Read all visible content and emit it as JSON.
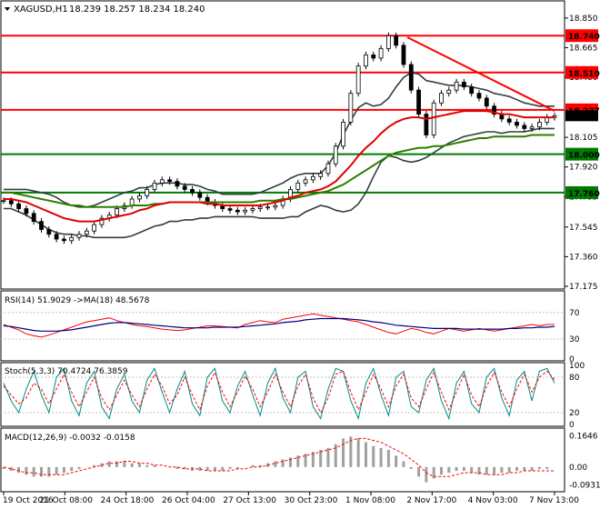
{
  "header": {
    "symbol": "XAGUSD,H1",
    "ohlc": "18.239 18.257 18.234 18.240"
  },
  "panels": {
    "rsi_label": "RSI(14) 51.9029 ->MA(18) 48.5678",
    "stoch_label": "Stoch(5,3,3) 70.4724 76.3859",
    "macd_label": "MACD(12,26,9) -0.0032 -0.0158"
  },
  "colors": {
    "resistance": "#ff0000",
    "support": "#007a00",
    "ma_fast": "#e00000",
    "ma_slow": "#2e7d00",
    "bands": "#2f3f3f",
    "candles": "#000000",
    "rsi": "#ff0000",
    "rsi_ma": "#000080",
    "stoch_main": "#008b8b",
    "stoch_signal": "#ff0000",
    "macd_hist": "#a0a0a0",
    "macd_signal": "#ff0000"
  },
  "chart_data": [
    {
      "type": "candlestick",
      "title": "XAGUSD,H1",
      "y_ticks": [
        "18.850",
        "18.665",
        "18.480",
        "18.105",
        "17.920",
        "17.735",
        "17.545",
        "17.360",
        "17.175"
      ],
      "ylim": [
        17.175,
        18.94
      ],
      "x_ticks": [
        "19 Oct 2016",
        "21 Oct 08:00",
        "24 Oct 18:00",
        "26 Oct 04:00",
        "27 Oct 13:00",
        "30 Oct 23:00",
        "1 Nov 08:00",
        "2 Nov 17:00",
        "4 Nov 03:00",
        "7 Nov 13:00"
      ],
      "current_price": "18.240",
      "horizontal_levels": [
        {
          "value": 18.74,
          "label": "18.740",
          "role": "resistance"
        },
        {
          "value": 18.51,
          "label": "18.510",
          "role": "resistance"
        },
        {
          "value": 18.277,
          "label": "18.277",
          "role": "resistance"
        },
        {
          "value": 18.0,
          "label": "18.000",
          "role": "support"
        },
        {
          "value": 17.76,
          "label": "17.760",
          "role": "support"
        }
      ],
      "trendline": {
        "from": {
          "x": 448,
          "y": 18.73
        },
        "to": {
          "x": 610,
          "y": 18.27
        }
      },
      "close": [
        17.71,
        17.69,
        17.66,
        17.63,
        17.58,
        17.53,
        17.5,
        17.47,
        17.46,
        17.48,
        17.5,
        17.52,
        17.56,
        17.6,
        17.62,
        17.66,
        17.68,
        17.72,
        17.74,
        17.78,
        17.82,
        17.84,
        17.83,
        17.8,
        17.78,
        17.76,
        17.73,
        17.7,
        17.68,
        17.66,
        17.65,
        17.64,
        17.65,
        17.66,
        17.67,
        17.67,
        17.68,
        17.72,
        17.78,
        17.82,
        17.84,
        17.86,
        17.88,
        17.94,
        18.05,
        18.2,
        18.38,
        18.55,
        18.62,
        18.6,
        18.66,
        18.74,
        18.68,
        18.56,
        18.4,
        18.25,
        18.12,
        18.32,
        18.38,
        18.4,
        18.45,
        18.42,
        18.38,
        18.35,
        18.3,
        18.25,
        18.22,
        18.2,
        18.18,
        18.16,
        18.17,
        18.2,
        18.23,
        18.24
      ],
      "ma_fast": [
        17.72,
        17.72,
        17.71,
        17.7,
        17.68,
        17.66,
        17.64,
        17.62,
        17.6,
        17.59,
        17.58,
        17.58,
        17.58,
        17.59,
        17.6,
        17.61,
        17.62,
        17.63,
        17.65,
        17.66,
        17.68,
        17.69,
        17.7,
        17.7,
        17.7,
        17.7,
        17.7,
        17.69,
        17.69,
        17.68,
        17.68,
        17.68,
        17.68,
        17.68,
        17.68,
        17.69,
        17.7,
        17.71,
        17.73,
        17.74,
        17.76,
        17.77,
        17.78,
        17.8,
        17.83,
        17.88,
        17.93,
        17.99,
        18.04,
        18.08,
        18.13,
        18.17,
        18.2,
        18.22,
        18.23,
        18.23,
        18.22,
        18.23,
        18.24,
        18.25,
        18.26,
        18.27,
        18.27,
        18.27,
        18.27,
        18.26,
        18.25,
        18.25,
        18.24,
        18.23,
        18.23,
        18.23,
        18.23,
        18.23
      ],
      "ma_slow": [
        17.76,
        17.76,
        17.75,
        17.74,
        17.73,
        17.72,
        17.71,
        17.7,
        17.69,
        17.68,
        17.68,
        17.67,
        17.67,
        17.67,
        17.67,
        17.67,
        17.67,
        17.68,
        17.68,
        17.68,
        17.69,
        17.69,
        17.7,
        17.7,
        17.7,
        17.7,
        17.7,
        17.7,
        17.7,
        17.7,
        17.7,
        17.7,
        17.7,
        17.7,
        17.71,
        17.71,
        17.71,
        17.72,
        17.72,
        17.73,
        17.74,
        17.75,
        17.76,
        17.77,
        17.79,
        17.81,
        17.84,
        17.87,
        17.9,
        17.93,
        17.96,
        17.99,
        18.01,
        18.02,
        18.03,
        18.04,
        18.04,
        18.05,
        18.05,
        18.06,
        18.07,
        18.08,
        18.09,
        18.1,
        18.1,
        18.11,
        18.11,
        18.11,
        18.11,
        18.11,
        18.12,
        18.12,
        18.12,
        18.12
      ],
      "band_width": [
        0.06,
        0.06,
        0.07,
        0.08,
        0.09,
        0.1,
        0.11,
        0.11,
        0.1,
        0.09,
        0.09,
        0.09,
        0.1,
        0.11,
        0.12,
        0.13,
        0.14,
        0.14,
        0.14,
        0.13,
        0.13,
        0.13,
        0.12,
        0.12,
        0.11,
        0.11,
        0.1,
        0.09,
        0.08,
        0.07,
        0.07,
        0.07,
        0.07,
        0.07,
        0.08,
        0.09,
        0.1,
        0.11,
        0.12,
        0.13,
        0.12,
        0.11,
        0.1,
        0.13,
        0.18,
        0.24,
        0.28,
        0.3,
        0.28,
        0.22,
        0.18,
        0.18,
        0.22,
        0.26,
        0.28,
        0.27,
        0.24,
        0.22,
        0.2,
        0.18,
        0.17,
        0.16,
        0.15,
        0.14,
        0.13,
        0.12,
        0.12,
        0.11,
        0.1,
        0.09,
        0.08,
        0.07,
        0.07,
        0.07
      ]
    },
    {
      "type": "line",
      "title": "RSI(14)",
      "y_ticks": [
        "70",
        "30",
        "0"
      ],
      "ylim": [
        0,
        100
      ],
      "series": [
        {
          "role": "rsi",
          "values": [
            52,
            48,
            44,
            38,
            35,
            33,
            36,
            40,
            44,
            48,
            52,
            56,
            58,
            60,
            62,
            58,
            55,
            52,
            50,
            49,
            47,
            45,
            44,
            43,
            44,
            46,
            48,
            50,
            50,
            49,
            48,
            47,
            52,
            55,
            58,
            56,
            55,
            60,
            62,
            64,
            66,
            68,
            66,
            64,
            62,
            60,
            58,
            56,
            52,
            48,
            44,
            40,
            38,
            42,
            46,
            44,
            40,
            38,
            42,
            46,
            44,
            42,
            44,
            46,
            44,
            42,
            44,
            46,
            48,
            50,
            52,
            50,
            52,
            52
          ]
        },
        {
          "role": "rsi_ma",
          "values": [
            50,
            49,
            47,
            45,
            43,
            42,
            42,
            42,
            43,
            44,
            46,
            48,
            50,
            52,
            54,
            55,
            55,
            54,
            53,
            52,
            51,
            50,
            49,
            48,
            47,
            47,
            47,
            47,
            48,
            48,
            48,
            48,
            49,
            50,
            51,
            52,
            53,
            55,
            56,
            57,
            59,
            60,
            61,
            61,
            61,
            61,
            60,
            59,
            58,
            56,
            55,
            53,
            51,
            50,
            49,
            48,
            47,
            46,
            46,
            46,
            46,
            45,
            45,
            45,
            45,
            45,
            45,
            46,
            46,
            47,
            47,
            48,
            48,
            49
          ]
        }
      ]
    },
    {
      "type": "line",
      "title": "Stoch(5,3,3)",
      "y_ticks": [
        "100",
        "80",
        "20",
        "0"
      ],
      "ylim": [
        0,
        100
      ],
      "series": [
        {
          "role": "main",
          "values": [
            70,
            40,
            20,
            60,
            90,
            50,
            20,
            80,
            95,
            40,
            15,
            70,
            90,
            30,
            10,
            60,
            85,
            40,
            20,
            75,
            95,
            55,
            20,
            60,
            90,
            35,
            15,
            80,
            95,
            40,
            20,
            65,
            90,
            50,
            15,
            70,
            95,
            45,
            20,
            80,
            90,
            30,
            10,
            60,
            95,
            90,
            40,
            10,
            70,
            95,
            50,
            15,
            80,
            90,
            30,
            20,
            75,
            95,
            40,
            10,
            70,
            90,
            35,
            20,
            80,
            95,
            45,
            15,
            75,
            90,
            40,
            90,
            95,
            70
          ]
        },
        {
          "role": "signal",
          "values": [
            65,
            50,
            35,
            45,
            70,
            60,
            35,
            60,
            85,
            55,
            30,
            55,
            80,
            45,
            25,
            50,
            75,
            50,
            30,
            60,
            85,
            65,
            35,
            50,
            80,
            50,
            25,
            65,
            88,
            55,
            30,
            55,
            82,
            60,
            30,
            55,
            85,
            55,
            30,
            65,
            85,
            45,
            20,
            45,
            85,
            90,
            55,
            25,
            55,
            85,
            60,
            30,
            65,
            85,
            45,
            30,
            60,
            88,
            55,
            25,
            55,
            85,
            50,
            30,
            65,
            88,
            55,
            30,
            60,
            85,
            55,
            80,
            90,
            76
          ]
        }
      ]
    },
    {
      "type": "bar",
      "title": "MACD(12,26,9)",
      "y_ticks": [
        "0.1646",
        "0.00",
        "-0.0931"
      ],
      "ylim": [
        -0.12,
        0.19
      ],
      "series": [
        {
          "role": "histogram",
          "values": [
            -0.01,
            -0.02,
            -0.03,
            -0.04,
            -0.05,
            -0.05,
            -0.05,
            -0.04,
            -0.03,
            -0.02,
            -0.01,
            0.0,
            0.01,
            0.02,
            0.03,
            0.03,
            0.03,
            0.02,
            0.02,
            0.01,
            0.01,
            0.0,
            0.0,
            -0.01,
            -0.01,
            -0.02,
            -0.02,
            -0.02,
            -0.02,
            -0.02,
            -0.01,
            -0.01,
            0.0,
            0.01,
            0.01,
            0.02,
            0.03,
            0.04,
            0.05,
            0.06,
            0.07,
            0.08,
            0.09,
            0.1,
            0.12,
            0.15,
            0.16,
            0.15,
            0.13,
            0.11,
            0.1,
            0.09,
            0.06,
            0.03,
            -0.01,
            -0.05,
            -0.08,
            -0.06,
            -0.04,
            -0.03,
            -0.02,
            -0.02,
            -0.03,
            -0.04,
            -0.04,
            -0.04,
            -0.03,
            -0.03,
            -0.02,
            -0.02,
            -0.02,
            -0.01,
            -0.01,
            0.0
          ]
        },
        {
          "role": "signal",
          "values": [
            0.0,
            -0.01,
            -0.02,
            -0.03,
            -0.03,
            -0.04,
            -0.04,
            -0.04,
            -0.04,
            -0.03,
            -0.02,
            -0.01,
            0.0,
            0.01,
            0.02,
            0.02,
            0.03,
            0.03,
            0.02,
            0.02,
            0.01,
            0.01,
            0.0,
            0.0,
            -0.01,
            -0.01,
            -0.01,
            -0.02,
            -0.02,
            -0.02,
            -0.02,
            -0.01,
            -0.01,
            0.0,
            0.0,
            0.01,
            0.02,
            0.03,
            0.04,
            0.05,
            0.06,
            0.07,
            0.08,
            0.09,
            0.1,
            0.12,
            0.14,
            0.15,
            0.15,
            0.14,
            0.13,
            0.11,
            0.09,
            0.07,
            0.04,
            0.01,
            -0.03,
            -0.05,
            -0.05,
            -0.05,
            -0.04,
            -0.03,
            -0.03,
            -0.03,
            -0.04,
            -0.04,
            -0.04,
            -0.03,
            -0.03,
            -0.02,
            -0.02,
            -0.02,
            -0.02,
            -0.02
          ]
        }
      ]
    }
  ]
}
